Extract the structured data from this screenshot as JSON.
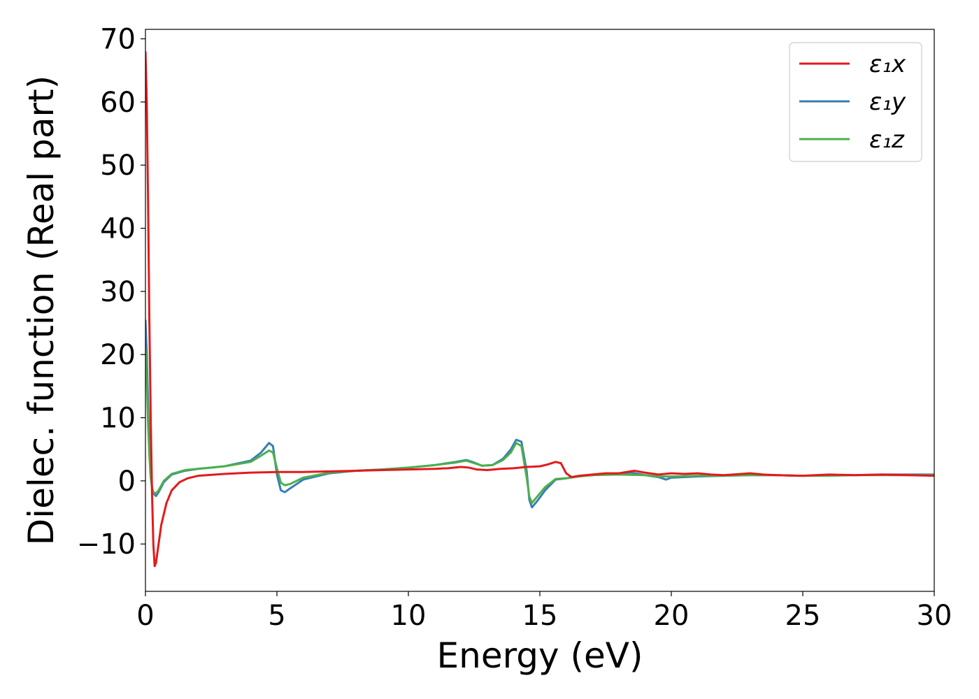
{
  "chart_data": {
    "type": "line",
    "title": "",
    "xlabel": "Energy (eV)",
    "ylabel": "Dielec. function (Real part)",
    "xlim": [
      0,
      30
    ],
    "ylim": [
      -17.5,
      71.5
    ],
    "xticks": [
      0,
      5,
      10,
      15,
      20,
      25,
      30
    ],
    "xtick_labels": [
      "0",
      "5",
      "10",
      "15",
      "20",
      "25",
      "30"
    ],
    "yticks": [
      -10,
      0,
      10,
      20,
      30,
      40,
      50,
      60,
      70
    ],
    "ytick_labels": [
      "−10",
      "0",
      "10",
      "20",
      "30",
      "40",
      "50",
      "60",
      "70"
    ],
    "grid": false,
    "legend_position": "top-right",
    "series": [
      {
        "name": "ε₁x",
        "color": "#e31a1c",
        "points": [
          [
            0,
            68
          ],
          [
            0.05,
            60
          ],
          [
            0.1,
            44
          ],
          [
            0.15,
            25
          ],
          [
            0.2,
            10
          ],
          [
            0.25,
            -2
          ],
          [
            0.3,
            -10
          ],
          [
            0.35,
            -13.5
          ],
          [
            0.4,
            -13
          ],
          [
            0.5,
            -10
          ],
          [
            0.6,
            -7
          ],
          [
            0.8,
            -3.5
          ],
          [
            1.0,
            -1.5
          ],
          [
            1.3,
            -0.2
          ],
          [
            1.6,
            0.4
          ],
          [
            2,
            0.8
          ],
          [
            3,
            1.1
          ],
          [
            4,
            1.3
          ],
          [
            5,
            1.4
          ],
          [
            6,
            1.4
          ],
          [
            7,
            1.5
          ],
          [
            8,
            1.6
          ],
          [
            9,
            1.7
          ],
          [
            10,
            1.8
          ],
          [
            11,
            1.9
          ],
          [
            11.5,
            2.0
          ],
          [
            12,
            2.2
          ],
          [
            12.3,
            2.1
          ],
          [
            12.6,
            1.8
          ],
          [
            13,
            1.7
          ],
          [
            13.5,
            1.9
          ],
          [
            14,
            2.0
          ],
          [
            14.5,
            2.2
          ],
          [
            15,
            2.3
          ],
          [
            15.3,
            2.6
          ],
          [
            15.6,
            3.0
          ],
          [
            15.8,
            2.8
          ],
          [
            16.0,
            1.2
          ],
          [
            16.2,
            0.6
          ],
          [
            16.5,
            0.8
          ],
          [
            17,
            1.0
          ],
          [
            17.5,
            1.2
          ],
          [
            18,
            1.2
          ],
          [
            18.6,
            1.6
          ],
          [
            19,
            1.3
          ],
          [
            19.5,
            1.0
          ],
          [
            20,
            1.2
          ],
          [
            20.5,
            1.1
          ],
          [
            21,
            1.2
          ],
          [
            21.5,
            1.0
          ],
          [
            22,
            0.9
          ],
          [
            23,
            1.2
          ],
          [
            23.5,
            1.0
          ],
          [
            24,
            0.9
          ],
          [
            25,
            0.8
          ],
          [
            26,
            1.0
          ],
          [
            27,
            0.9
          ],
          [
            28,
            1.0
          ],
          [
            29,
            0.9
          ],
          [
            30,
            0.8
          ]
        ]
      },
      {
        "name": "ε₁y",
        "color": "#377eb8",
        "points": [
          [
            0,
            25.5
          ],
          [
            0.05,
            20
          ],
          [
            0.1,
            12
          ],
          [
            0.15,
            5
          ],
          [
            0.2,
            1
          ],
          [
            0.25,
            -1
          ],
          [
            0.3,
            -2
          ],
          [
            0.4,
            -2.4
          ],
          [
            0.5,
            -1.8
          ],
          [
            0.7,
            -0.2
          ],
          [
            1.0,
            1.0
          ],
          [
            1.5,
            1.6
          ],
          [
            2,
            1.9
          ],
          [
            3,
            2.3
          ],
          [
            4,
            3.2
          ],
          [
            4.4,
            4.5
          ],
          [
            4.7,
            6.0
          ],
          [
            4.85,
            5.5
          ],
          [
            5.0,
            1.0
          ],
          [
            5.15,
            -1.5
          ],
          [
            5.3,
            -1.8
          ],
          [
            5.5,
            -1.2
          ],
          [
            6,
            0.2
          ],
          [
            7,
            1.2
          ],
          [
            8,
            1.6
          ],
          [
            9,
            1.8
          ],
          [
            10,
            2.1
          ],
          [
            11,
            2.5
          ],
          [
            11.8,
            3.0
          ],
          [
            12.2,
            3.3
          ],
          [
            12.5,
            2.9
          ],
          [
            12.8,
            2.4
          ],
          [
            13.2,
            2.5
          ],
          [
            13.6,
            3.5
          ],
          [
            13.9,
            5.0
          ],
          [
            14.1,
            6.5
          ],
          [
            14.3,
            6.2
          ],
          [
            14.5,
            1.5
          ],
          [
            14.6,
            -3.0
          ],
          [
            14.7,
            -4.2
          ],
          [
            14.9,
            -3.2
          ],
          [
            15.2,
            -1.5
          ],
          [
            15.6,
            0.2
          ],
          [
            16,
            0.4
          ],
          [
            16.5,
            0.8
          ],
          [
            17,
            0.9
          ],
          [
            18,
            1.2
          ],
          [
            18.5,
            1.3
          ],
          [
            19,
            0.9
          ],
          [
            19.5,
            0.6
          ],
          [
            19.8,
            0.2
          ],
          [
            20,
            0.5
          ],
          [
            21,
            0.7
          ],
          [
            22,
            0.8
          ],
          [
            23,
            0.9
          ],
          [
            24,
            0.9
          ],
          [
            25,
            0.8
          ],
          [
            26,
            0.9
          ],
          [
            27,
            0.9
          ],
          [
            28,
            1.0
          ],
          [
            29,
            1.0
          ],
          [
            30,
            1.0
          ]
        ]
      },
      {
        "name": "ε₁z",
        "color": "#4daf4a",
        "points": [
          [
            0,
            21
          ],
          [
            0.05,
            16
          ],
          [
            0.1,
            9
          ],
          [
            0.15,
            4
          ],
          [
            0.2,
            0.5
          ],
          [
            0.25,
            -1
          ],
          [
            0.3,
            -1.8
          ],
          [
            0.4,
            -2.0
          ],
          [
            0.5,
            -1.5
          ],
          [
            0.7,
            0
          ],
          [
            1.0,
            1.1
          ],
          [
            1.5,
            1.7
          ],
          [
            2,
            1.9
          ],
          [
            3,
            2.3
          ],
          [
            4,
            3.0
          ],
          [
            4.4,
            4.0
          ],
          [
            4.7,
            4.8
          ],
          [
            4.85,
            4.5
          ],
          [
            5.0,
            2.0
          ],
          [
            5.15,
            -0.3
          ],
          [
            5.3,
            -0.7
          ],
          [
            5.5,
            -0.5
          ],
          [
            6,
            0.5
          ],
          [
            7,
            1.3
          ],
          [
            8,
            1.6
          ],
          [
            9,
            1.8
          ],
          [
            10,
            2.1
          ],
          [
            11,
            2.5
          ],
          [
            11.8,
            2.9
          ],
          [
            12.2,
            3.2
          ],
          [
            12.5,
            2.8
          ],
          [
            12.8,
            2.4
          ],
          [
            13.2,
            2.5
          ],
          [
            13.6,
            3.3
          ],
          [
            13.9,
            4.5
          ],
          [
            14.1,
            6.0
          ],
          [
            14.3,
            5.5
          ],
          [
            14.5,
            0.5
          ],
          [
            14.6,
            -2.5
          ],
          [
            14.7,
            -3.5
          ],
          [
            14.9,
            -2.5
          ],
          [
            15.2,
            -1.0
          ],
          [
            15.6,
            0.3
          ],
          [
            16,
            0.4
          ],
          [
            16.5,
            0.7
          ],
          [
            17,
            0.9
          ],
          [
            18,
            1.0
          ],
          [
            19,
            0.9
          ],
          [
            19.5,
            0.7
          ],
          [
            20,
            0.7
          ],
          [
            21,
            0.8
          ],
          [
            22,
            0.8
          ],
          [
            23,
            0.9
          ],
          [
            24,
            0.9
          ],
          [
            25,
            0.8
          ],
          [
            26,
            0.8
          ],
          [
            27,
            0.9
          ],
          [
            28,
            0.9
          ],
          [
            29,
            0.9
          ],
          [
            30,
            0.9
          ]
        ]
      }
    ]
  }
}
